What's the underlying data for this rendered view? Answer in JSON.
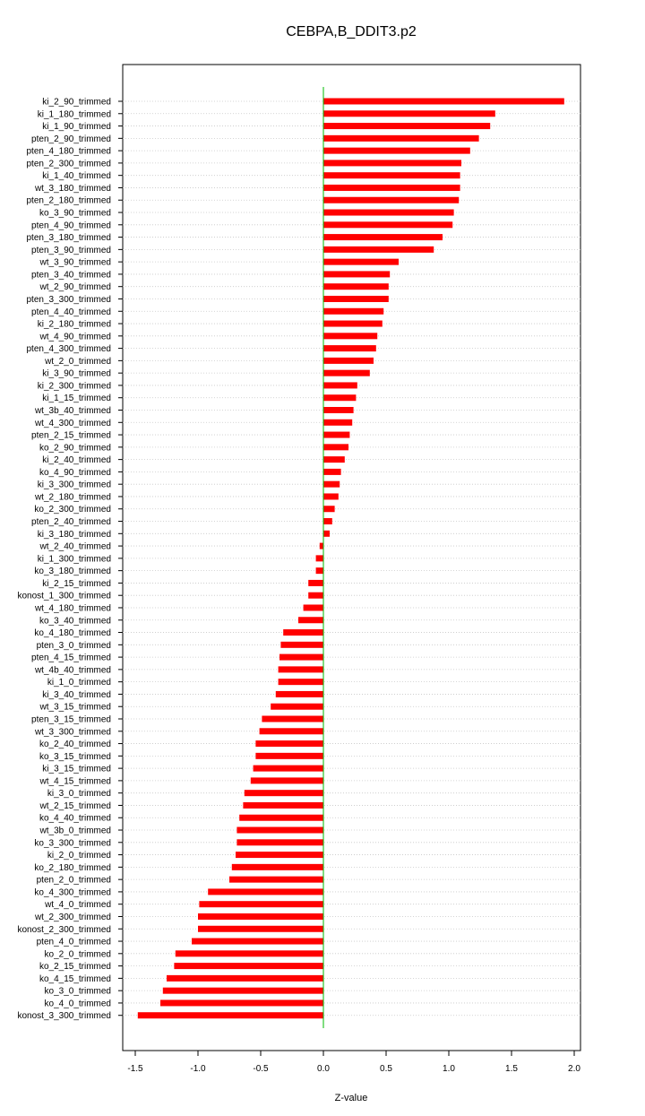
{
  "chart_data": {
    "type": "bar",
    "orientation": "horizontal",
    "title": "CEBPA,B_DDIT3.p2",
    "xlabel": "Z-value",
    "ylabel": "",
    "xlim": [
      -1.6,
      2.05
    ],
    "x_ticks": [
      "-1.5",
      "-1.0",
      "-0.5",
      "0.0",
      "0.5",
      "1.0",
      "1.5",
      "2.0"
    ],
    "x_tick_values": [
      -1.5,
      -1.0,
      -0.5,
      0.0,
      0.5,
      1.0,
      1.5,
      2.0
    ],
    "grid": "horizontal dotted per category",
    "bar_color": "#ff0000",
    "zero_line_color": "#00bb00",
    "categories": [
      "ki_2_90_trimmed",
      "ki_1_180_trimmed",
      "ki_1_90_trimmed",
      "pten_2_90_trimmed",
      "pten_4_180_trimmed",
      "pten_2_300_trimmed",
      "ki_1_40_trimmed",
      "wt_3_180_trimmed",
      "pten_2_180_trimmed",
      "ko_3_90_trimmed",
      "pten_4_90_trimmed",
      "pten_3_180_trimmed",
      "pten_3_90_trimmed",
      "wt_3_90_trimmed",
      "pten_3_40_trimmed",
      "wt_2_90_trimmed",
      "pten_3_300_trimmed",
      "pten_4_40_trimmed",
      "ki_2_180_trimmed",
      "wt_4_90_trimmed",
      "pten_4_300_trimmed",
      "wt_2_0_trimmed",
      "ki_3_90_trimmed",
      "ki_2_300_trimmed",
      "ki_1_15_trimmed",
      "wt_3b_40_trimmed",
      "wt_4_300_trimmed",
      "pten_2_15_trimmed",
      "ko_2_90_trimmed",
      "ki_2_40_trimmed",
      "ko_4_90_trimmed",
      "ki_3_300_trimmed",
      "wt_2_180_trimmed",
      "ko_2_300_trimmed",
      "pten_2_40_trimmed",
      "ki_3_180_trimmed",
      "wt_2_40_trimmed",
      "ki_1_300_trimmed",
      "ko_3_180_trimmed",
      "ki_2_15_trimmed",
      "konost_1_300_trimmed",
      "wt_4_180_trimmed",
      "ko_3_40_trimmed",
      "ko_4_180_trimmed",
      "pten_3_0_trimmed",
      "pten_4_15_trimmed",
      "wt_4b_40_trimmed",
      "ki_1_0_trimmed",
      "ki_3_40_trimmed",
      "wt_3_15_trimmed",
      "pten_3_15_trimmed",
      "wt_3_300_trimmed",
      "ko_2_40_trimmed",
      "ko_3_15_trimmed",
      "ki_3_15_trimmed",
      "wt_4_15_trimmed",
      "ki_3_0_trimmed",
      "wt_2_15_trimmed",
      "ko_4_40_trimmed",
      "wt_3b_0_trimmed",
      "ko_3_300_trimmed",
      "ki_2_0_trimmed",
      "ko_2_180_trimmed",
      "pten_2_0_trimmed",
      "ko_4_300_trimmed",
      "wt_4_0_trimmed",
      "wt_2_300_trimmed",
      "konost_2_300_trimmed",
      "pten_4_0_trimmed",
      "ko_2_0_trimmed",
      "ko_2_15_trimmed",
      "ko_4_15_trimmed",
      "ko_3_0_trimmed",
      "ko_4_0_trimmed",
      "konost_3_300_trimmed"
    ],
    "values": [
      1.92,
      1.37,
      1.33,
      1.24,
      1.17,
      1.1,
      1.09,
      1.09,
      1.08,
      1.04,
      1.03,
      0.95,
      0.88,
      0.6,
      0.53,
      0.52,
      0.52,
      0.48,
      0.47,
      0.43,
      0.42,
      0.4,
      0.37,
      0.27,
      0.26,
      0.24,
      0.23,
      0.21,
      0.2,
      0.17,
      0.14,
      0.13,
      0.12,
      0.09,
      0.07,
      0.05,
      -0.03,
      -0.06,
      -0.06,
      -0.12,
      -0.12,
      -0.16,
      -0.2,
      -0.32,
      -0.34,
      -0.35,
      -0.36,
      -0.36,
      -0.38,
      -0.42,
      -0.49,
      -0.51,
      -0.54,
      -0.54,
      -0.56,
      -0.58,
      -0.63,
      -0.64,
      -0.67,
      -0.69,
      -0.69,
      -0.7,
      -0.73,
      -0.75,
      -0.92,
      -0.99,
      -1.0,
      -1.0,
      -1.05,
      -1.18,
      -1.19,
      -1.25,
      -1.28,
      -1.3,
      -1.48
    ]
  }
}
